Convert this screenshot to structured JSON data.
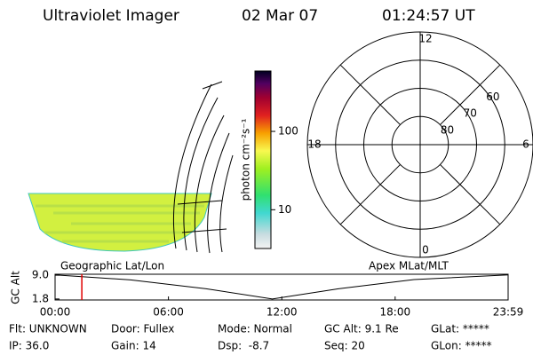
{
  "header": {
    "instrument": "Ultraviolet Imager",
    "date": "02 Mar 07",
    "time": "01:24:57 UT"
  },
  "colorbar": {
    "label": "photon cm⁻²s⁻¹",
    "clim": [
      3.2,
      590
    ],
    "log": true,
    "ticks": [
      10,
      100
    ]
  },
  "polar": {
    "lat_lim": [
      50,
      90
    ],
    "rings": [
      80,
      70,
      60
    ],
    "mlt_labels": [
      12,
      18,
      6,
      0
    ]
  },
  "map_labels": {
    "left": "Geographic Lat/Lon",
    "right": "Apex MLat/MLT"
  },
  "timeline": {
    "ylabel": "GC Alt",
    "ylim": [
      1.5,
      9.3
    ],
    "yticks": [
      {
        "value": 9,
        "label": "9.0"
      },
      1.8
    ],
    "xlim": [
      0,
      23.98
    ],
    "xticks": [
      {
        "value": 0,
        "label": "00:00"
      },
      {
        "value": 6,
        "label": "06:00"
      },
      {
        "value": 12,
        "label": "12:00"
      },
      {
        "value": 18,
        "label": "18:00"
      },
      {
        "value": 23.98,
        "label": "23:59"
      }
    ],
    "curve": {
      "x": [
        0,
        4,
        8,
        11.5,
        15,
        19,
        23.98
      ],
      "values": [
        9.1,
        7.6,
        4.9,
        1.8,
        4.9,
        7.7,
        9.1
      ]
    },
    "current_time": 1.416
  },
  "status": [
    [
      "Flt: UNKNOWN",
      "Door: Fullex",
      "Mode: Normal",
      "GC Alt: 9.1 Re",
      "GLat: *****"
    ],
    [
      "IP: 36.0",
      "Gain: 14",
      "Dsp:  -8.7",
      "Seq: 20",
      "GLon: *****"
    ]
  ]
}
